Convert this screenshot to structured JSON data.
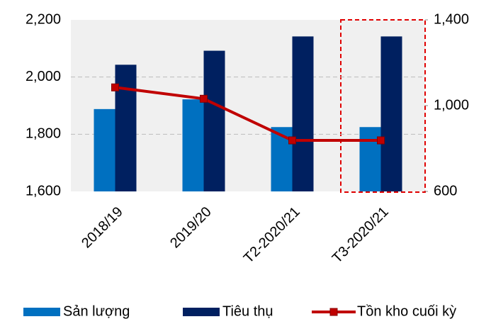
{
  "chart_data": {
    "type": "bar-line",
    "categories": [
      "2018/19",
      "2019/20",
      "T2-2020/21",
      "T3-2020/21"
    ],
    "series": [
      {
        "name": "Sản lượng",
        "color": "#0070c0",
        "kind": "bar",
        "values": [
          1888,
          1922,
          1825,
          1825
        ]
      },
      {
        "name": "Tiêu thụ",
        "color": "#002060",
        "kind": "bar",
        "values": [
          2043,
          2092,
          2142,
          2142
        ]
      },
      {
        "name": "Tồn kho cuối kỳ",
        "color": "#c00000",
        "kind": "line",
        "axis": "y2",
        "values": [
          1085,
          1032,
          838,
          838
        ]
      }
    ],
    "ylim": [
      1600,
      2200
    ],
    "yticks": [
      {
        "value": 1600,
        "label": "1,600"
      },
      {
        "value": 1800,
        "label": "1,800"
      },
      {
        "value": 2000,
        "label": "2,000"
      },
      {
        "value": 2200,
        "label": "2,200"
      }
    ],
    "y2lim": [
      600,
      1400
    ],
    "y2ticks": [
      600,
      {
        "value": 1000,
        "label": "1,000"
      },
      {
        "value": 1400,
        "label": "1,400"
      }
    ],
    "grid": true,
    "legend": "bottom"
  }
}
